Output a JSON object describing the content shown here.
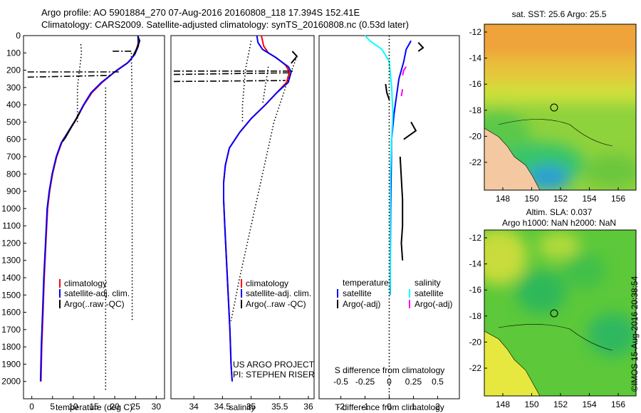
{
  "header": {
    "title_line1": "Argo profile: AO 5901884_270 07-Aug-2016 20160808_118 17.394S 152.41E",
    "title_line2": "Climatology: CARS2009. Satellite-adjusted climatology: synTS_20160808.nc (0.53d later)"
  },
  "colors": {
    "climatology": "#ff0000",
    "satellite": "#0000ff",
    "argo": "#000000",
    "sat_salinity": "#00ffff",
    "argo_salinity_adj": "#ff00ff",
    "land": "#f4c8a0"
  },
  "chart_data": [
    {
      "type": "line",
      "id": "temperature",
      "xlabel": "temperature (deg C)",
      "ylabel": "",
      "xlim": [
        -2,
        32
      ],
      "ylim": [
        2100,
        0
      ],
      "xticks": [
        0,
        5,
        10,
        15,
        20,
        25,
        30
      ],
      "yticks": [
        0,
        100,
        200,
        300,
        400,
        500,
        600,
        700,
        800,
        900,
        1000,
        1100,
        1200,
        1300,
        1400,
        1500,
        1600,
        1700,
        1800,
        1900,
        2000
      ],
      "legend": [
        "climatology",
        "satellite-adj. clim.",
        "Argo(..raw -QC)"
      ],
      "series": [
        {
          "name": "climatology",
          "style": "solid",
          "color": "#ff0000",
          "points": [
            [
              25.7,
              40
            ],
            [
              25.0,
              100
            ],
            [
              23.5,
              150
            ],
            [
              20.5,
              200
            ],
            [
              17.0,
              270
            ],
            [
              14.5,
              330
            ],
            [
              12.6,
              400
            ],
            [
              10.8,
              480
            ],
            [
              9.0,
              550
            ],
            [
              7.2,
              620
            ],
            [
              6.0,
              700
            ],
            [
              5.0,
              800
            ],
            [
              4.3,
              900
            ],
            [
              3.8,
              1000
            ],
            [
              3.4,
              1200
            ],
            [
              3.0,
              1400
            ],
            [
              2.7,
              1600
            ],
            [
              2.4,
              1800
            ],
            [
              2.2,
              2000
            ]
          ]
        },
        {
          "name": "satellite-adj. clim.",
          "style": "solid",
          "color": "#0000ff",
          "points": [
            [
              25.6,
              0
            ],
            [
              25.7,
              60
            ],
            [
              24.8,
              110
            ],
            [
              23.0,
              160
            ],
            [
              20.0,
              210
            ],
            [
              16.8,
              270
            ],
            [
              14.3,
              330
            ],
            [
              12.5,
              400
            ],
            [
              10.7,
              480
            ],
            [
              8.9,
              550
            ],
            [
              7.1,
              620
            ],
            [
              5.9,
              700
            ],
            [
              4.9,
              800
            ],
            [
              4.2,
              900
            ],
            [
              3.7,
              1000
            ],
            [
              3.3,
              1200
            ],
            [
              2.9,
              1400
            ],
            [
              2.6,
              1600
            ],
            [
              2.3,
              1800
            ],
            [
              2.1,
              2000
            ]
          ]
        },
        {
          "name": "Argo",
          "style": "solid",
          "color": "#000000",
          "points": [
            [
              25.6,
              5
            ],
            [
              26.0,
              30
            ],
            [
              25.6,
              60
            ],
            [
              25.0,
              90
            ],
            [
              24.4,
              120
            ]
          ]
        },
        {
          "name": "Argo",
          "style": "solid",
          "color": "#000000",
          "points": [
            [
              11.6,
              440
            ],
            [
              11.0,
              470
            ],
            [
              10.3,
              500
            ],
            [
              9.5,
              530
            ],
            [
              8.8,
              560
            ],
            [
              8.1,
              590
            ],
            [
              7.5,
              610
            ]
          ]
        },
        {
          "name": "Argo",
          "style": "dashdot",
          "color": "#000000",
          "points": [
            [
              19.5,
              90
            ],
            [
              24.0,
              90
            ]
          ]
        },
        {
          "name": "Argo",
          "style": "dashdot",
          "color": "#000000",
          "points": [
            [
              -1.0,
              210
            ],
            [
              21.0,
              210
            ]
          ]
        },
        {
          "name": "Argo",
          "style": "dashdot",
          "color": "#000000",
          "points": [
            [
              -1.0,
              240
            ],
            [
              19.0,
              230
            ]
          ]
        },
        {
          "name": "Argo",
          "style": "dotted",
          "color": "#000000",
          "points": [
            [
              11.8,
              50
            ],
            [
              12.0,
              100
            ],
            [
              11.5,
              200
            ],
            [
              11.0,
              300
            ],
            [
              11.0,
              400
            ],
            [
              11.0,
              500
            ]
          ]
        },
        {
          "name": "Argo",
          "style": "dotted",
          "color": "#000000",
          "points": [
            [
              17.8,
              300
            ],
            [
              17.8,
              600
            ],
            [
              17.8,
              1000
            ],
            [
              17.8,
              1500
            ],
            [
              17.8,
              2000
            ],
            [
              17.8,
              2050
            ]
          ]
        },
        {
          "name": "Argo",
          "style": "dotted",
          "color": "#000000",
          "points": [
            [
              24.0,
              100
            ],
            [
              24.2,
              400
            ],
            [
              24.2,
              800
            ],
            [
              24.2,
              1200
            ],
            [
              24.2,
              1650
            ]
          ]
        }
      ]
    },
    {
      "type": "line",
      "id": "salinity",
      "xlabel": "salinity",
      "ylabel": "",
      "xlim": [
        33.6,
        36.1
      ],
      "ylim": [
        2100,
        0
      ],
      "xticks": [
        34,
        34.5,
        35,
        35.5,
        36
      ],
      "yticks": [],
      "legend": [
        "climatology",
        "satellite-adj. clim.",
        "Argo(..raw -QC)"
      ],
      "annotation_line1": "US ARGO PROJECT",
      "annotation_line2": "PI: STEPHEN RISER",
      "series": [
        {
          "name": "climatology",
          "style": "solid",
          "color": "#ff0000",
          "points": [
            [
              35.18,
              0
            ],
            [
              35.22,
              60
            ],
            [
              35.3,
              100
            ],
            [
              35.45,
              130
            ],
            [
              35.6,
              170
            ],
            [
              35.67,
              210
            ],
            [
              35.62,
              270
            ],
            [
              35.45,
              330
            ],
            [
              35.25,
              400
            ],
            [
              35.0,
              480
            ],
            [
              34.8,
              560
            ],
            [
              34.62,
              650
            ],
            [
              34.55,
              750
            ],
            [
              34.52,
              850
            ],
            [
              34.52,
              950
            ],
            [
              34.54,
              1100
            ],
            [
              34.57,
              1300
            ],
            [
              34.6,
              1500
            ],
            [
              34.63,
              1700
            ],
            [
              34.65,
              1900
            ],
            [
              34.67,
              2000
            ]
          ]
        },
        {
          "name": "satellite-adj. clim.",
          "style": "solid",
          "color": "#0000ff",
          "points": [
            [
              35.1,
              0
            ],
            [
              35.12,
              40
            ],
            [
              35.2,
              80
            ],
            [
              35.4,
              120
            ],
            [
              35.65,
              180
            ],
            [
              35.7,
              210
            ],
            [
              35.65,
              270
            ],
            [
              35.45,
              330
            ],
            [
              35.25,
              400
            ],
            [
              35.0,
              480
            ],
            [
              34.8,
              560
            ],
            [
              34.62,
              650
            ],
            [
              34.55,
              750
            ],
            [
              34.52,
              850
            ],
            [
              34.52,
              950
            ],
            [
              34.54,
              1100
            ],
            [
              34.57,
              1300
            ],
            [
              34.6,
              1500
            ],
            [
              34.63,
              1700
            ],
            [
              34.65,
              1900
            ],
            [
              34.67,
              2000
            ]
          ]
        },
        {
          "name": "Argo",
          "style": "solid",
          "color": "#000000",
          "points": [
            [
              35.72,
              90
            ],
            [
              35.8,
              120
            ],
            [
              35.7,
              160
            ]
          ]
        },
        {
          "name": "Argo",
          "style": "dashdot",
          "color": "#000000",
          "points": [
            [
              33.65,
              205
            ],
            [
              35.75,
              205
            ]
          ]
        },
        {
          "name": "Argo",
          "style": "dashdot",
          "color": "#000000",
          "points": [
            [
              33.65,
              225
            ],
            [
              35.7,
              215
            ]
          ]
        },
        {
          "name": "Argo",
          "style": "dashdot",
          "color": "#000000",
          "points": [
            [
              33.65,
              265
            ],
            [
              35.6,
              260
            ]
          ]
        },
        {
          "name": "Argo",
          "style": "dotted",
          "color": "#000000",
          "points": [
            [
              35.0,
              30
            ],
            [
              34.9,
              200
            ],
            [
              34.85,
              400
            ],
            [
              34.85,
              500
            ]
          ]
        },
        {
          "name": "Argo",
          "style": "dotted",
          "color": "#000000",
          "points": [
            [
              35.3,
              180
            ],
            [
              35.2,
              400
            ]
          ]
        },
        {
          "name": "Argo",
          "style": "dotted",
          "color": "#000000",
          "points": [
            [
              35.8,
              120
            ],
            [
              35.6,
              300
            ],
            [
              35.4,
              500
            ],
            [
              35.2,
              800
            ],
            [
              35.0,
              1100
            ],
            [
              34.8,
              1400
            ],
            [
              34.65,
              1650
            ]
          ]
        }
      ]
    },
    {
      "type": "line",
      "id": "difference",
      "xlabel": "T difference from climatology",
      "xlabel_top": "S difference from climatology",
      "xlim": [
        -2.9,
        2.9
      ],
      "ylim": [
        2100,
        0
      ],
      "xticks": [
        -2,
        -1,
        0,
        1,
        2
      ],
      "xticks_S_labels": [
        "-0.5",
        "-0.25",
        "0",
        "0.25",
        "0.5"
      ],
      "yticks": [],
      "legend_T_title": "temperature",
      "legend_S_title": "salinity",
      "legend_T": [
        "satellite",
        "Argo(-adj)"
      ],
      "legend_S": [
        "satellite",
        "Argo(-adj)"
      ],
      "series": [
        {
          "name": "T satellite",
          "style": "solid",
          "color": "#0000ff",
          "points": [
            [
              0.9,
              30
            ],
            [
              0.7,
              80
            ],
            [
              0.6,
              150
            ],
            [
              0.5,
              200
            ],
            [
              0.4,
              250
            ],
            [
              0.3,
              350
            ],
            [
              0.2,
              450
            ],
            [
              0.1,
              600
            ],
            [
              0.08,
              800
            ],
            [
              0.06,
              1000
            ],
            [
              0.05,
              1200
            ],
            [
              0.04,
              1400
            ],
            [
              0.04,
              1500
            ]
          ]
        },
        {
          "name": "S satellite",
          "style": "solid",
          "color": "#00ffff",
          "points": [
            [
              -1.0,
              0
            ],
            [
              -0.8,
              30
            ],
            [
              -0.3,
              80
            ],
            [
              0.0,
              150
            ],
            [
              0.1,
              300
            ],
            [
              0.15,
              450
            ],
            [
              0.1,
              600
            ],
            [
              0.05,
              800
            ],
            [
              0.04,
              1000
            ],
            [
              0.04,
              1200
            ],
            [
              0.04,
              1400
            ],
            [
              0.03,
              1500
            ]
          ]
        },
        {
          "name": "Argo T",
          "style": "solid",
          "color": "#000000",
          "points": [
            [
              1.2,
              40
            ],
            [
              1.4,
              70
            ],
            [
              1.2,
              90
            ]
          ]
        },
        {
          "name": "Argo T",
          "style": "solid",
          "color": "#000000",
          "points": [
            [
              -0.15,
              280
            ],
            [
              -0.1,
              330
            ],
            [
              0.0,
              370
            ]
          ]
        },
        {
          "name": "Argo T",
          "style": "solid",
          "color": "#000000",
          "points": [
            [
              0.45,
              700
            ],
            [
              0.55,
              950
            ],
            [
              0.55,
              1100
            ],
            [
              0.5,
              1200
            ],
            [
              0.55,
              1300
            ]
          ]
        },
        {
          "name": "Argo S",
          "style": "solid",
          "color": "#000000",
          "points": [
            [
              0.9,
              500
            ],
            [
              1.1,
              550
            ],
            [
              0.6,
              600
            ]
          ]
        },
        {
          "name": "Argo S adj",
          "style": "solid",
          "color": "#ff00ff",
          "points": [
            [
              0.7,
              180
            ],
            [
              0.6,
              200
            ],
            [
              0.55,
              230
            ]
          ]
        },
        {
          "name": "Argo S adj",
          "style": "solid",
          "color": "#ff00ff",
          "points": [
            [
              0.55,
              310
            ],
            [
              0.5,
              350
            ]
          ]
        },
        {
          "name": "zero line",
          "style": "dotted",
          "color": "#000000",
          "points": [
            [
              0,
              0
            ],
            [
              0,
              2100
            ]
          ]
        }
      ]
    }
  ],
  "maps": {
    "sst": {
      "title": "sat. SST: 25.6 Argo: 25.5",
      "xticks": [
        "148",
        "150",
        "152",
        "154",
        "156"
      ],
      "yticks": [
        "-12",
        "-14",
        "-16",
        "-18",
        "-20",
        "-22"
      ]
    },
    "sla": {
      "title_line1": "Altim. SLA: 0.037",
      "title_line2": "Argo h1000: NaN h2000: NaN",
      "xticks": [
        "148",
        "150",
        "152",
        "154",
        "156"
      ],
      "yticks": [
        "-12",
        "-14",
        "-16",
        "-18",
        "-20",
        "-22"
      ]
    }
  },
  "credit": "©IMOS 15-Aug-2016 20:38:54"
}
